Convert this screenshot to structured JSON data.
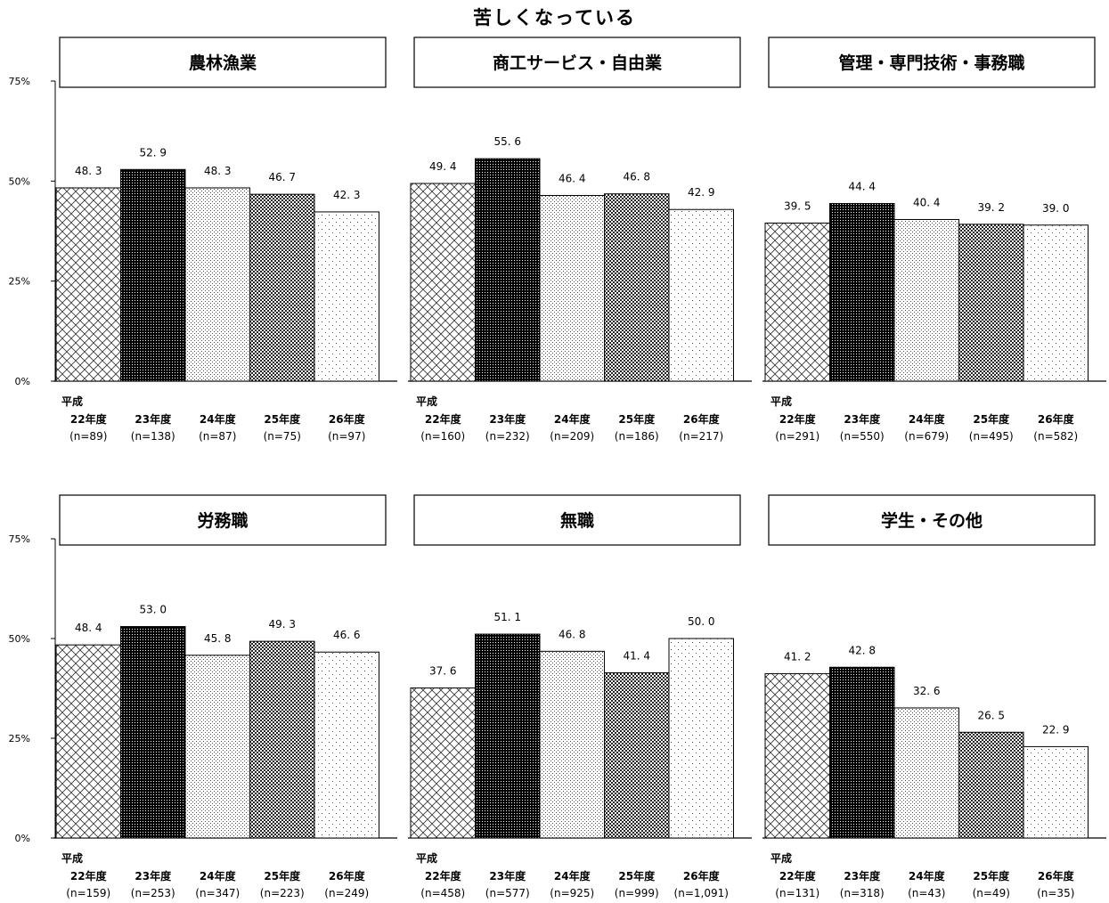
{
  "title": "苦しくなっている",
  "colors": {
    "s0": "#e8e8e8",
    "s1": "#111111",
    "s2": "#f2f2f2",
    "s3": "#555555",
    "s4": "#fafafa"
  },
  "chart_data": [
    {
      "type": "bar",
      "title": "農林漁業",
      "categories": [
        "22年度",
        "23年度",
        "24年度",
        "25年度",
        "26年度"
      ],
      "category_prefix": "平成",
      "n_labels": [
        "(n=89)",
        "(n=138)",
        "(n=87)",
        "(n=75)",
        "(n=97)"
      ],
      "values": [
        48.3,
        52.9,
        48.3,
        46.7,
        42.3
      ],
      "ylim": [
        0,
        75
      ],
      "yticks": [
        "0%",
        "25%",
        "50%",
        "75%"
      ]
    },
    {
      "type": "bar",
      "title": "商工サービス・自由業",
      "categories": [
        "22年度",
        "23年度",
        "24年度",
        "25年度",
        "26年度"
      ],
      "category_prefix": "平成",
      "n_labels": [
        "(n=160)",
        "(n=232)",
        "(n=209)",
        "(n=186)",
        "(n=217)"
      ],
      "values": [
        49.4,
        55.6,
        46.4,
        46.8,
        42.9
      ],
      "ylim": [
        0,
        75
      ]
    },
    {
      "type": "bar",
      "title": "管理・専門技術・事務職",
      "categories": [
        "22年度",
        "23年度",
        "24年度",
        "25年度",
        "26年度"
      ],
      "category_prefix": "平成",
      "n_labels": [
        "(n=291)",
        "(n=550)",
        "(n=679)",
        "(n=495)",
        "(n=582)"
      ],
      "values": [
        39.5,
        44.4,
        40.4,
        39.2,
        39.0
      ],
      "ylim": [
        0,
        75
      ]
    },
    {
      "type": "bar",
      "title": "労務職",
      "categories": [
        "22年度",
        "23年度",
        "24年度",
        "25年度",
        "26年度"
      ],
      "category_prefix": "平成",
      "n_labels": [
        "(n=159)",
        "(n=253)",
        "(n=347)",
        "(n=223)",
        "(n=249)"
      ],
      "values": [
        48.4,
        53.0,
        45.8,
        49.3,
        46.6
      ],
      "ylim": [
        0,
        75
      ],
      "yticks": [
        "0%",
        "25%",
        "50%",
        "75%"
      ]
    },
    {
      "type": "bar",
      "title": "無職",
      "categories": [
        "22年度",
        "23年度",
        "24年度",
        "25年度",
        "26年度"
      ],
      "category_prefix": "平成",
      "n_labels": [
        "(n=458)",
        "(n=577)",
        "(n=925)",
        "(n=999)",
        "(n=1,091)"
      ],
      "values": [
        37.6,
        51.1,
        46.8,
        41.4,
        50.0
      ],
      "ylim": [
        0,
        75
      ]
    },
    {
      "type": "bar",
      "title": "学生・その他",
      "categories": [
        "22年度",
        "23年度",
        "24年度",
        "25年度",
        "26年度"
      ],
      "category_prefix": "平成",
      "n_labels": [
        "(n=131)",
        "(n=318)",
        "(n=43)",
        "(n=49)",
        "(n=35)"
      ],
      "values": [
        41.2,
        42.8,
        32.6,
        26.5,
        22.9
      ],
      "ylim": [
        0,
        75
      ]
    }
  ]
}
